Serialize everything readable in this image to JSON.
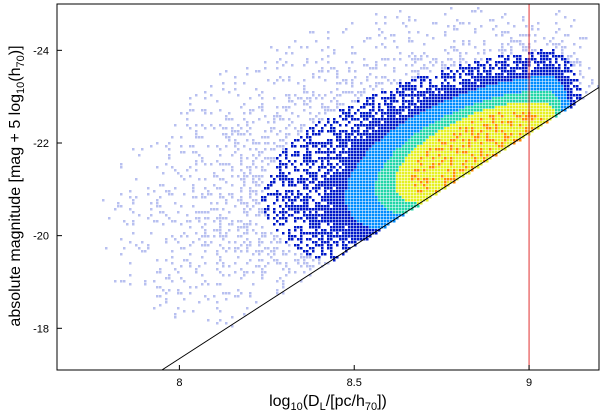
{
  "chart_data": {
    "type": "heatmap",
    "xlabel": {
      "prefix": "log",
      "sub1": "10",
      "mid": "(D",
      "sub2": "L",
      "rest": "/[pc/h",
      "sub3": "70",
      "end": "])"
    },
    "ylabel": {
      "prefix": "absolute magnitude [mag + 5 log",
      "sub1": "10",
      "mid": "(h",
      "sub2": "70",
      "end": ")]"
    },
    "xlim": [
      7.65,
      9.2
    ],
    "ylim": [
      -17.1,
      -25.0
    ],
    "y_inverted": true,
    "x_ticks": [
      8,
      8.5,
      9
    ],
    "x_tick_labels": [
      "8",
      "8.5",
      "9"
    ],
    "y_ticks": [
      -18,
      -20,
      -22,
      -24
    ],
    "y_tick_labels": [
      "-18",
      "-20",
      "-22",
      "-24"
    ],
    "grid": false,
    "colormap": [
      "#ffffff",
      "#b8c0f0",
      "#0018c8",
      "#008cff",
      "#22d6a8",
      "#e6f022",
      "#ff8a00"
    ],
    "density_model": {
      "description": "galaxy number density in (log10 distance, absolute magnitude); peak density near x=8.82, y=-21.9",
      "peak_x": 8.82,
      "peak_y": -21.9,
      "cut_line": {
        "x1": 7.95,
        "y1": -17.1,
        "x2": 9.2,
        "y2": -23.2
      }
    },
    "lines": [
      {
        "name": "",
        "type": "black-diagonal",
        "x": [
          7.95,
          9.2
        ],
        "y": [
          -17.1,
          -23.2
        ],
        "color": "#000000"
      },
      {
        "name": "",
        "type": "vertical",
        "x": [
          9.0,
          9.0
        ],
        "y": [
          -17.1,
          -25.0
        ],
        "color": "#e03030"
      }
    ]
  }
}
